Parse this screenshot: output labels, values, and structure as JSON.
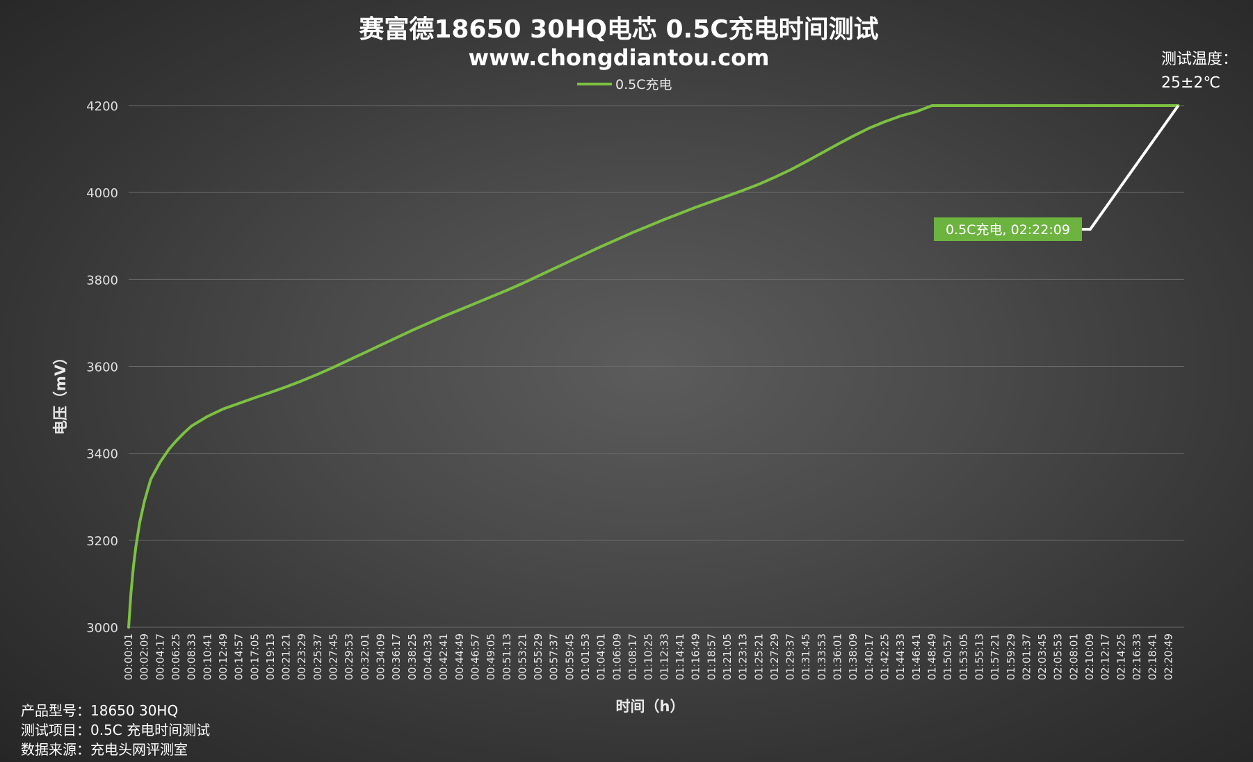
{
  "chart_data": {
    "type": "line",
    "title": "赛富德18650 30HQ电芯 0.5C充电时间测试",
    "subtitle": "www.chongdiantou.com",
    "xlabel": "时间（h）",
    "ylabel": "电压（mV）",
    "ylim": [
      3000,
      4200
    ],
    "yticks": [
      "3000",
      "3200",
      "3400",
      "3600",
      "3800",
      "4000",
      "4200"
    ],
    "grid": true,
    "legend_position": "top-center",
    "x_ticks": [
      "00:00:01",
      "00:02:09",
      "00:04:17",
      "00:06:25",
      "00:08:33",
      "00:10:41",
      "00:12:49",
      "00:14:57",
      "00:17:05",
      "00:19:13",
      "00:21:21",
      "00:23:29",
      "00:25:37",
      "00:27:45",
      "00:29:53",
      "00:32:01",
      "00:34:09",
      "00:36:17",
      "00:38:25",
      "00:40:33",
      "00:42:41",
      "00:44:49",
      "00:46:57",
      "00:49:05",
      "00:51:13",
      "00:53:21",
      "00:55:29",
      "00:57:37",
      "00:59:45",
      "01:01:53",
      "01:04:01",
      "01:06:09",
      "01:08:17",
      "01:10:25",
      "01:12:33",
      "01:14:41",
      "01:16:49",
      "01:18:57",
      "01:21:05",
      "01:23:13",
      "01:25:21",
      "01:27:29",
      "01:29:37",
      "01:31:45",
      "01:33:53",
      "01:36:01",
      "01:38:09",
      "01:40:17",
      "01:42:25",
      "01:44:33",
      "01:46:41",
      "01:48:49",
      "01:50:57",
      "01:53:05",
      "01:55:13",
      "01:57:21",
      "01:59:29",
      "02:01:37",
      "02:03:45",
      "02:05:53",
      "02:08:01",
      "02:10:09",
      "02:12:17",
      "02:14:25",
      "02:16:33",
      "02:18:41",
      "02:20:49"
    ],
    "series": [
      {
        "name": "0.5C充电",
        "color": "#7cc142",
        "x": [
          "00:00:01",
          "00:00:20",
          "00:00:40",
          "00:01:00",
          "00:01:30",
          "00:02:09",
          "00:03:00",
          "00:04:17",
          "00:05:30",
          "00:06:25",
          "00:07:30",
          "00:08:33",
          "00:10:41",
          "00:12:49",
          "00:14:57",
          "00:17:05",
          "00:19:13",
          "00:21:21",
          "00:23:29",
          "00:25:37",
          "00:27:45",
          "00:29:53",
          "00:32:01",
          "00:34:09",
          "00:36:17",
          "00:38:25",
          "00:40:33",
          "00:42:41",
          "00:44:49",
          "00:46:57",
          "00:49:05",
          "00:51:13",
          "00:53:21",
          "00:55:29",
          "00:57:37",
          "00:59:45",
          "01:01:53",
          "01:04:01",
          "01:06:09",
          "01:08:17",
          "01:10:25",
          "01:12:33",
          "01:14:41",
          "01:16:49",
          "01:18:57",
          "01:21:05",
          "01:23:13",
          "01:25:21",
          "01:27:29",
          "01:29:37",
          "01:31:45",
          "01:33:53",
          "01:36:01",
          "01:38:09",
          "01:40:17",
          "01:42:25",
          "01:44:33",
          "01:46:41",
          "01:48:49",
          "01:50:57",
          "01:55:13",
          "02:00:00",
          "02:05:53",
          "02:10:09",
          "02:14:25",
          "02:18:41",
          "02:20:49",
          "02:22:09"
        ],
        "values": [
          3000,
          3080,
          3140,
          3185,
          3240,
          3290,
          3340,
          3380,
          3410,
          3428,
          3447,
          3463,
          3485,
          3502,
          3515,
          3528,
          3540,
          3553,
          3567,
          3582,
          3598,
          3615,
          3632,
          3649,
          3666,
          3683,
          3699,
          3715,
          3730,
          3745,
          3760,
          3775,
          3791,
          3808,
          3825,
          3842,
          3859,
          3876,
          3892,
          3908,
          3923,
          3938,
          3952,
          3966,
          3979,
          3992,
          4005,
          4019,
          4035,
          4052,
          4071,
          4091,
          4111,
          4130,
          4148,
          4163,
          4176,
          4186,
          4200,
          4200,
          4200,
          4200,
          4200,
          4200,
          4200,
          4200,
          4200,
          4200
        ]
      }
    ],
    "annotation": {
      "text": "0.5C充电, 02:22:09",
      "bg": "#6cb33f",
      "at_x": "02:22:09",
      "at_value": 4200
    }
  },
  "temperature": {
    "label": "测试温度：",
    "value": "25±2℃"
  },
  "info": [
    {
      "label": "产品型号：",
      "value": "18650 30HQ"
    },
    {
      "label": "测试项目：",
      "value": "0.5C 充电时间测试"
    },
    {
      "label": "数据来源：",
      "value": "充电头网评测室"
    }
  ]
}
